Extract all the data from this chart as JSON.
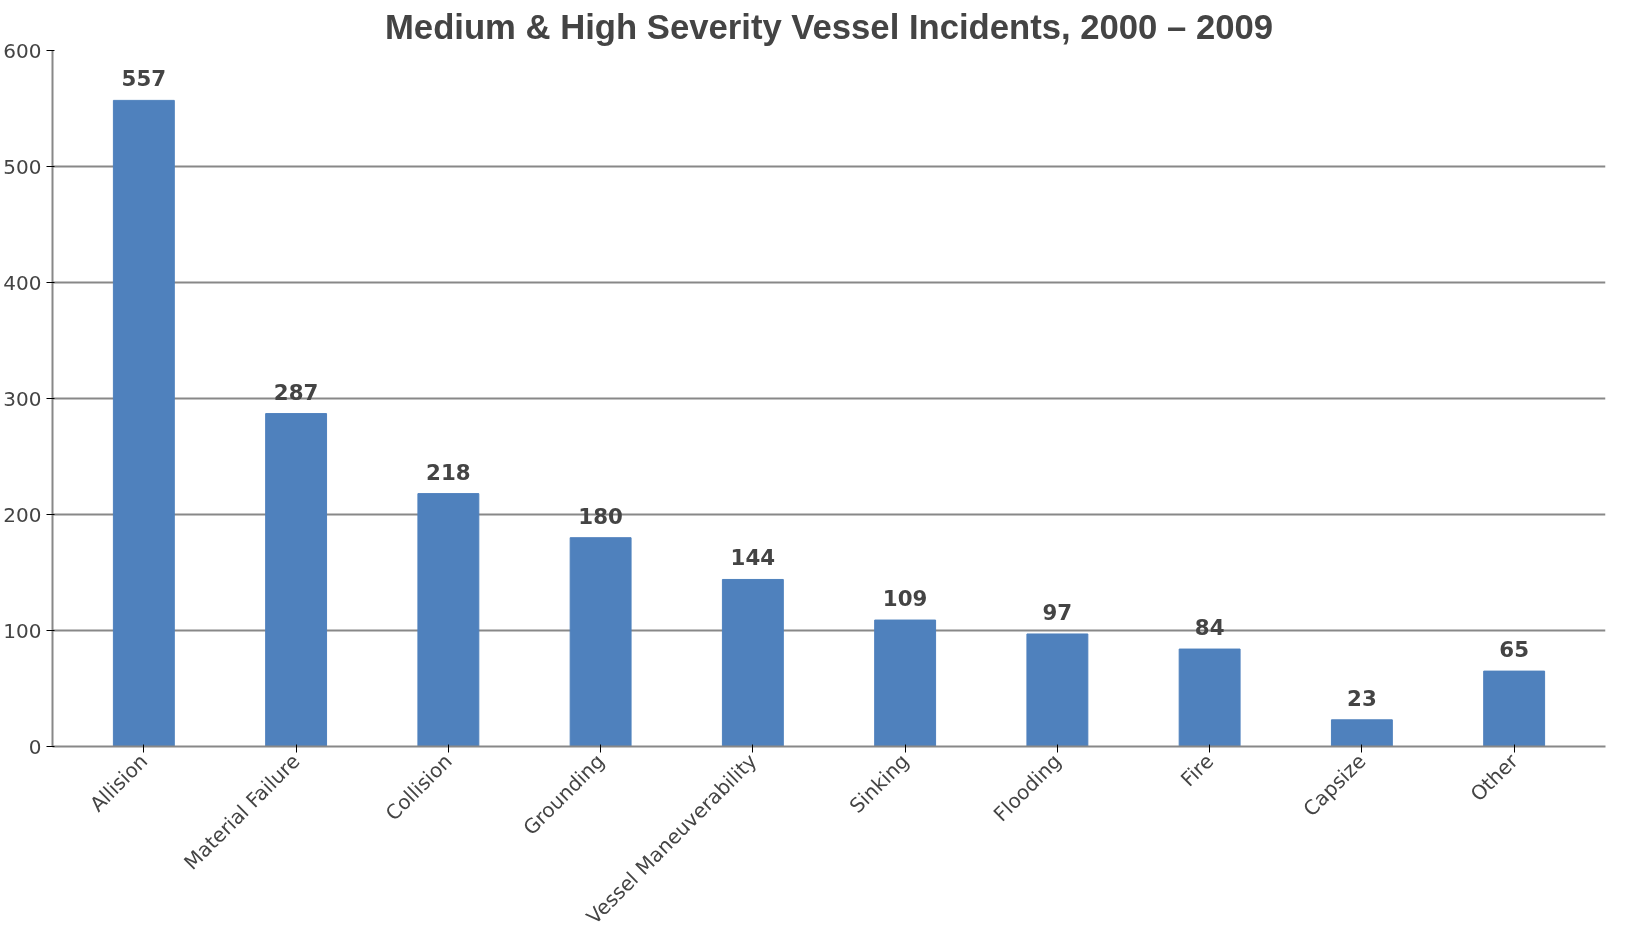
{
  "chart_data": {
    "type": "bar",
    "title": "Medium & High Severity Vessel Incidents, 2000 – 2009",
    "categories": [
      "Allision",
      "Material Failure",
      "Collision",
      "Grounding",
      "Vessel Maneuverability",
      "Sinking",
      "Flooding",
      "Fire",
      "Capsize",
      "Other"
    ],
    "values": [
      557,
      287,
      218,
      180,
      144,
      109,
      97,
      84,
      23,
      65
    ],
    "color": "#4f81bd",
    "ylim": [
      0,
      600
    ],
    "yticks": [
      0,
      100,
      200,
      300,
      400,
      500,
      600
    ],
    "grid": "y",
    "data_labels": true
  }
}
